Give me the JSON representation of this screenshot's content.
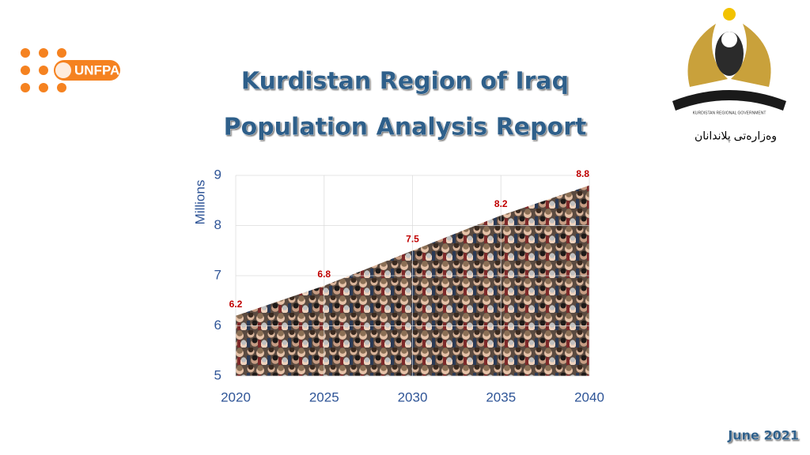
{
  "logo_text": "UNFPA",
  "title_lines": [
    "Kurdistan Region of Iraq",
    "Population Analysis Report"
  ],
  "emblem_text": "KURDISTAN REGIONAL GOVERNMENT",
  "ministry": "وەزارەتی پلاندانان",
  "date": "June 2021",
  "chart_data": {
    "type": "area",
    "y_label": "Millions",
    "x": [
      2020,
      2025,
      2030,
      2035,
      2040
    ],
    "values": [
      6.2,
      6.8,
      7.5,
      8.2,
      8.8
    ],
    "label_color": "#c00000",
    "xlim": [
      2020,
      2040
    ],
    "xticks": [
      2020,
      2025,
      2030,
      2035,
      2040
    ],
    "ylim": [
      5,
      9
    ],
    "yticks": [
      5,
      6,
      7,
      8,
      9
    ],
    "grid": true
  }
}
